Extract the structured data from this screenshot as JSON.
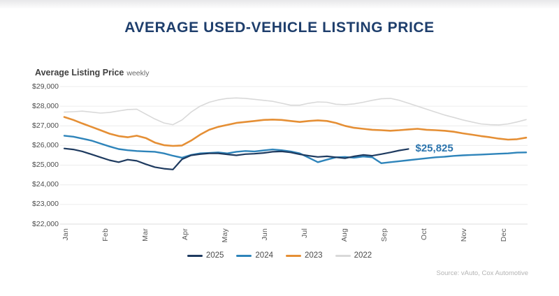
{
  "page": {
    "title": "AVERAGE USED-VEHICLE LISTING PRICE",
    "source": "Source: vAuto, Cox Automotive"
  },
  "chart": {
    "label_bold": "Average Listing Price",
    "label_light": "weekly",
    "annotation": {
      "text": "$25,825",
      "series": "2025",
      "color": "#2b74ad"
    },
    "y_tick_labels": [
      "$29,000",
      "$28,000",
      "$27,000",
      "$26,000",
      "$25,000",
      "$24,000",
      "$23,000",
      "$22,000"
    ],
    "colors": {
      "title": "#1e3e6c",
      "gridline": "#ececec",
      "baseline": "#dcdcdc",
      "axis_text": "#595959"
    }
  },
  "chart_data": {
    "type": "line",
    "title": "AVERAGE USED-VEHICLE LISTING PRICE",
    "subtitle": "Average Listing Price weekly",
    "x_description": "weekly data points, January through December",
    "x_tick_labels": [
      "Jan",
      "Feb",
      "Mar",
      "Apr",
      "May",
      "Jun",
      "Jul",
      "Aug",
      "Sep",
      "Oct",
      "Nov",
      "Dec"
    ],
    "ylabel": "Average Listing Price ($)",
    "ylim": [
      22000,
      29000
    ],
    "y_tick_step": 1000,
    "grid": "horizontal",
    "legend_position": "bottom",
    "annotation": "$25,825 at latest 2025 point (late September)",
    "series": [
      {
        "name": "2025",
        "color": "#1e3a5f",
        "stroke_width": 2.2,
        "values": [
          25850,
          25800,
          25700,
          25550,
          25400,
          25250,
          25150,
          25280,
          25220,
          25050,
          24900,
          24820,
          24780,
          25300,
          25500,
          25560,
          25600,
          25600,
          25550,
          25500,
          25560,
          25580,
          25620,
          25680,
          25700,
          25650,
          25550,
          25480,
          25420,
          25450,
          25400,
          25350,
          25450,
          25520,
          25480,
          25560,
          25650,
          25750,
          25825
        ]
      },
      {
        "name": "2024",
        "color": "#2e84ba",
        "stroke_width": 2.4,
        "values": [
          26500,
          26450,
          26350,
          26250,
          26100,
          25950,
          25820,
          25760,
          25720,
          25700,
          25680,
          25600,
          25480,
          25380,
          25520,
          25600,
          25620,
          25650,
          25600,
          25680,
          25720,
          25700,
          25750,
          25800,
          25760,
          25700,
          25600,
          25380,
          25150,
          25280,
          25400,
          25420,
          25380,
          25440,
          25400,
          25100,
          25150,
          25200,
          25250,
          25300,
          25350,
          25400,
          25430,
          25470,
          25500,
          25520,
          25540,
          25560,
          25580,
          25600,
          25640,
          25650
        ]
      },
      {
        "name": "2023",
        "color": "#e58f35",
        "stroke_width": 2.6,
        "values": [
          27450,
          27300,
          27120,
          26950,
          26780,
          26600,
          26480,
          26420,
          26500,
          26380,
          26150,
          26020,
          25980,
          26000,
          26250,
          26550,
          26800,
          26950,
          27050,
          27150,
          27200,
          27250,
          27300,
          27320,
          27300,
          27250,
          27200,
          27250,
          27280,
          27250,
          27150,
          27000,
          26900,
          26850,
          26800,
          26780,
          26750,
          26780,
          26820,
          26850,
          26800,
          26780,
          26750,
          26700,
          26620,
          26550,
          26480,
          26420,
          26350,
          26300,
          26320,
          26400
        ]
      },
      {
        "name": "2022",
        "color": "#d9d9d9",
        "stroke_width": 1.6,
        "values": [
          27700,
          27720,
          27750,
          27700,
          27650,
          27680,
          27760,
          27830,
          27850,
          27600,
          27350,
          27150,
          27060,
          27300,
          27700,
          28000,
          28200,
          28320,
          28400,
          28420,
          28400,
          28350,
          28300,
          28250,
          28150,
          28050,
          28050,
          28150,
          28220,
          28200,
          28100,
          28080,
          28120,
          28200,
          28300,
          28380,
          28400,
          28300,
          28150,
          28000,
          27850,
          27700,
          27550,
          27430,
          27300,
          27200,
          27100,
          27060,
          27050,
          27100,
          27200,
          27320
        ]
      }
    ]
  }
}
